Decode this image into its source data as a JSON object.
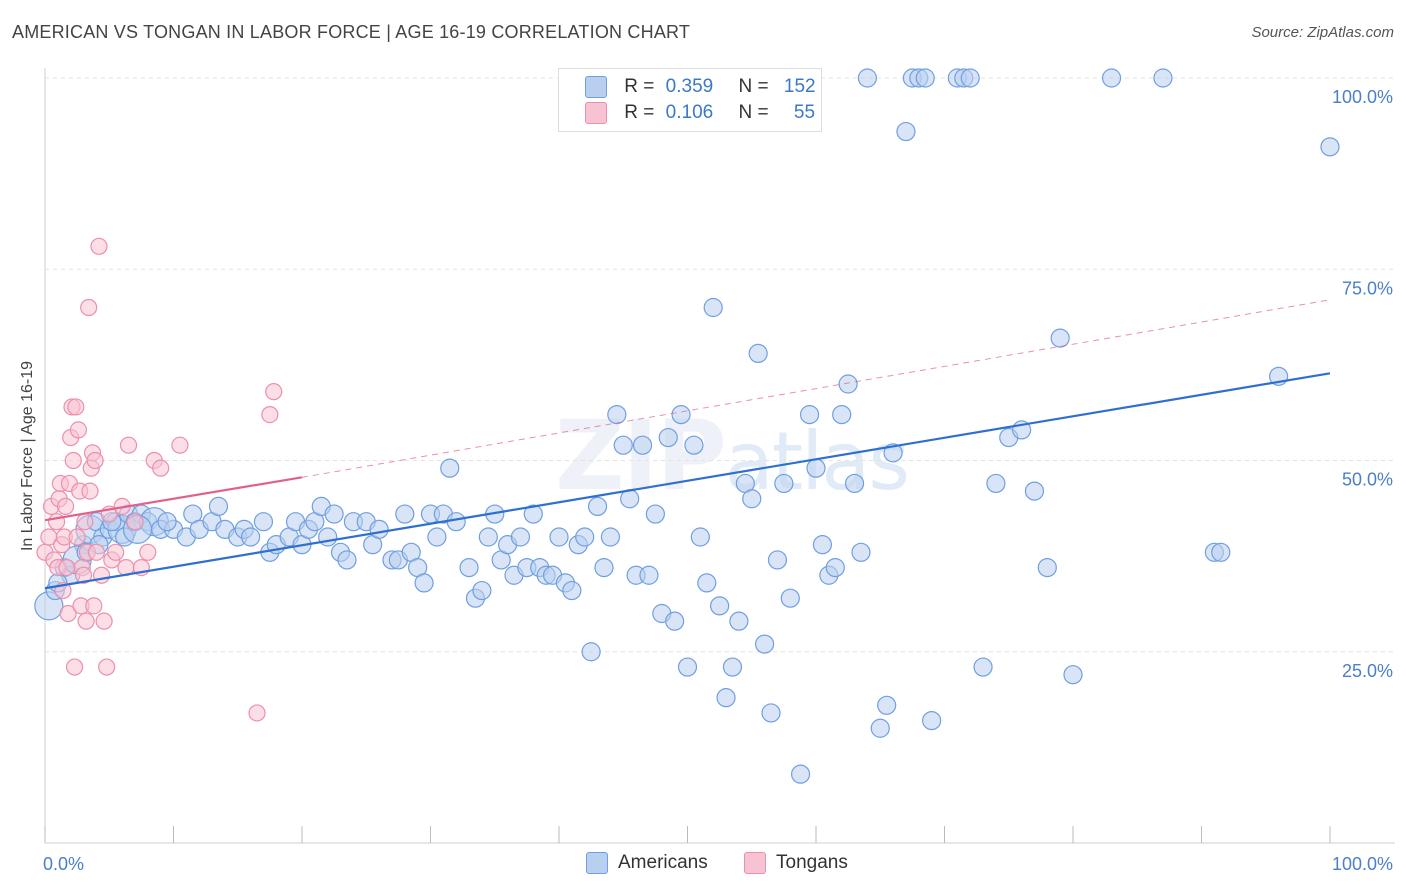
{
  "title": "AMERICAN VS TONGAN IN LABOR FORCE | AGE 16-19 CORRELATION CHART",
  "source": "Source: ZipAtlas.com",
  "watermark": {
    "zip": "ZIP",
    "atlas": "atlas"
  },
  "colors": {
    "americans_fill": "#b9cff0",
    "americans_stroke": "#6f9fe0",
    "americans_line": "#2f6fd0",
    "tongans_fill": "#f7c3d2",
    "tongans_stroke": "#ec8fac",
    "tongans_line": "#e0628a",
    "grid": "#e3e3e3",
    "tick_text": "#4a7fc9"
  },
  "legend": {
    "americans": {
      "r_label": "R =",
      "r_value": "0.359",
      "n_label": "N =",
      "n_value": "152"
    },
    "tongans": {
      "r_label": "R =",
      "r_value": "0.106",
      "n_label": "N =",
      "n_value": "55"
    }
  },
  "bottom_legend": {
    "americans": "Americans",
    "tongans": "Tongans"
  },
  "chart_data": {
    "type": "scatter",
    "title": "AMERICAN VS TONGAN IN LABOR FORCE | AGE 16-19 CORRELATION CHART",
    "xlabel": "",
    "ylabel": "In Labor Force | Age 16-19",
    "xlim": [
      0,
      100
    ],
    "ylim": [
      0,
      100
    ],
    "x_tick_labels": [
      "0.0%",
      "100.0%"
    ],
    "y_ticks": [
      25,
      50,
      75,
      100
    ],
    "y_tick_labels": [
      "25.0%",
      "50.0%",
      "75.0%",
      "100.0%"
    ],
    "grid": true,
    "legend_position": "top-center",
    "series": [
      {
        "name": "Americans",
        "r": 0.359,
        "n": 152,
        "trend": {
          "x": [
            0,
            100
          ],
          "y": [
            33.3,
            61.4
          ]
        },
        "points": [
          [
            0.3,
            31
          ],
          [
            0.8,
            33
          ],
          [
            1.5,
            36
          ],
          [
            2,
            35
          ],
          [
            3,
            39
          ],
          [
            3.5,
            41
          ],
          [
            4,
            42
          ],
          [
            4.5,
            40
          ],
          [
            5,
            41
          ],
          [
            5.5,
            42
          ],
          [
            6,
            41
          ],
          [
            6.5,
            43
          ],
          [
            7,
            42
          ],
          [
            7.5,
            43
          ],
          [
            8,
            42
          ],
          [
            8.5,
            42
          ],
          [
            9,
            41
          ],
          [
            10,
            41
          ],
          [
            11,
            40
          ],
          [
            11.5,
            43
          ],
          [
            12,
            41
          ],
          [
            13,
            42
          ],
          [
            13.5,
            44
          ],
          [
            14,
            41
          ],
          [
            15,
            40
          ],
          [
            15.5,
            41
          ],
          [
            16,
            40
          ],
          [
            17,
            42
          ],
          [
            17.5,
            38
          ],
          [
            18,
            39
          ],
          [
            19,
            40
          ],
          [
            19.5,
            42
          ],
          [
            20,
            39
          ],
          [
            20.5,
            41
          ],
          [
            21,
            42
          ],
          [
            21.5,
            44
          ],
          [
            22,
            40
          ],
          [
            22.5,
            43
          ],
          [
            23,
            38
          ],
          [
            23.5,
            37
          ],
          [
            24,
            42
          ],
          [
            25,
            42
          ],
          [
            25.5,
            39
          ],
          [
            26,
            41
          ],
          [
            27,
            37
          ],
          [
            27.5,
            37
          ],
          [
            28,
            43
          ],
          [
            28.5,
            38
          ],
          [
            29,
            36
          ],
          [
            29.5,
            34
          ],
          [
            30,
            43
          ],
          [
            30.5,
            40
          ],
          [
            31,
            43
          ],
          [
            31.5,
            49
          ],
          [
            32,
            42
          ],
          [
            33,
            36
          ],
          [
            33.5,
            32
          ],
          [
            34,
            33
          ],
          [
            34.5,
            40
          ],
          [
            35,
            43
          ],
          [
            35.5,
            37
          ],
          [
            36,
            39
          ],
          [
            36.5,
            35
          ],
          [
            37,
            40
          ],
          [
            37.5,
            36
          ],
          [
            38,
            43
          ],
          [
            38.5,
            36
          ],
          [
            39,
            35
          ],
          [
            39.5,
            35
          ],
          [
            40,
            40
          ],
          [
            40.5,
            34
          ],
          [
            41,
            33
          ],
          [
            41.5,
            39
          ],
          [
            42,
            40
          ],
          [
            42.5,
            25
          ],
          [
            43,
            44
          ],
          [
            43.5,
            36
          ],
          [
            44,
            40
          ],
          [
            44.5,
            56
          ],
          [
            45,
            52
          ],
          [
            45.5,
            45
          ],
          [
            46,
            35
          ],
          [
            46.5,
            52
          ],
          [
            47,
            35
          ],
          [
            47.5,
            43
          ],
          [
            48,
            30
          ],
          [
            48.5,
            53
          ],
          [
            49,
            29
          ],
          [
            49.5,
            56
          ],
          [
            50,
            23
          ],
          [
            50.5,
            52
          ],
          [
            51,
            40
          ],
          [
            51.5,
            34
          ],
          [
            52,
            70
          ],
          [
            52.5,
            31
          ],
          [
            53,
            19
          ],
          [
            53.5,
            23
          ],
          [
            54,
            29
          ],
          [
            54.5,
            47
          ],
          [
            55,
            45
          ],
          [
            55.5,
            64
          ],
          [
            56,
            26
          ],
          [
            56.5,
            17
          ],
          [
            57,
            37
          ],
          [
            57.5,
            47
          ],
          [
            58,
            32
          ],
          [
            58.5,
            100
          ],
          [
            58.8,
            9
          ],
          [
            59,
            100
          ],
          [
            59.5,
            56
          ],
          [
            60,
            49
          ],
          [
            60.5,
            39
          ],
          [
            61,
            35
          ],
          [
            61.5,
            36
          ],
          [
            62,
            56
          ],
          [
            62.5,
            60
          ],
          [
            63,
            47
          ],
          [
            63.5,
            38
          ],
          [
            64,
            100
          ],
          [
            65,
            15
          ],
          [
            65.5,
            18
          ],
          [
            66,
            51
          ],
          [
            67,
            93
          ],
          [
            67.5,
            100
          ],
          [
            68,
            100
          ],
          [
            68.5,
            100
          ],
          [
            69,
            16
          ],
          [
            71,
            100
          ],
          [
            71.5,
            100
          ],
          [
            72,
            100
          ],
          [
            73,
            23
          ],
          [
            74,
            47
          ],
          [
            75,
            53
          ],
          [
            76,
            54
          ],
          [
            77,
            46
          ],
          [
            78,
            36
          ],
          [
            79,
            66
          ],
          [
            80,
            22
          ],
          [
            83,
            100
          ],
          [
            87,
            100
          ],
          [
            91,
            38
          ],
          [
            91.5,
            38
          ],
          [
            96,
            61
          ],
          [
            100,
            91
          ],
          [
            1,
            34
          ],
          [
            2.5,
            37
          ],
          [
            3.2,
            38
          ],
          [
            4.2,
            39
          ],
          [
            5.2,
            42
          ],
          [
            6.2,
            40
          ],
          [
            7.2,
            41
          ],
          [
            9.5,
            42
          ]
        ]
      },
      {
        "name": "Tongans",
        "r": 0.106,
        "n": 55,
        "trend": {
          "x": [
            0,
            20
          ],
          "y": [
            42.2,
            47.8
          ]
        },
        "trend_extended": {
          "x": [
            20,
            100
          ],
          "y": [
            47.8,
            71
          ]
        },
        "points": [
          [
            0,
            38
          ],
          [
            0.3,
            40
          ],
          [
            0.5,
            44
          ],
          [
            0.7,
            37
          ],
          [
            0.9,
            42
          ],
          [
            1,
            36
          ],
          [
            1.1,
            45
          ],
          [
            1.2,
            47
          ],
          [
            1.3,
            39
          ],
          [
            1.4,
            33
          ],
          [
            1.5,
            40
          ],
          [
            1.6,
            44
          ],
          [
            1.7,
            36
          ],
          [
            1.8,
            30
          ],
          [
            1.9,
            47
          ],
          [
            2,
            53
          ],
          [
            2.1,
            57
          ],
          [
            2.2,
            50
          ],
          [
            2.3,
            23
          ],
          [
            2.4,
            57
          ],
          [
            2.5,
            40
          ],
          [
            2.6,
            54
          ],
          [
            2.7,
            46
          ],
          [
            2.8,
            31
          ],
          [
            2.9,
            36
          ],
          [
            3,
            35
          ],
          [
            3.1,
            42
          ],
          [
            3.2,
            29
          ],
          [
            3.3,
            38
          ],
          [
            3.4,
            70
          ],
          [
            3.5,
            46
          ],
          [
            3.6,
            49
          ],
          [
            3.7,
            51
          ],
          [
            3.8,
            31
          ],
          [
            3.9,
            50
          ],
          [
            4,
            38
          ],
          [
            4.2,
            78
          ],
          [
            4.4,
            35
          ],
          [
            4.6,
            29
          ],
          [
            4.8,
            23
          ],
          [
            5,
            43
          ],
          [
            5.2,
            37
          ],
          [
            5.5,
            38
          ],
          [
            6,
            44
          ],
          [
            6.3,
            36
          ],
          [
            6.5,
            52
          ],
          [
            7,
            42
          ],
          [
            7.5,
            36
          ],
          [
            8,
            38
          ],
          [
            8.5,
            50
          ],
          [
            9,
            49
          ],
          [
            10.5,
            52
          ],
          [
            16.5,
            17
          ],
          [
            17.5,
            56
          ],
          [
            17.8,
            59
          ]
        ]
      }
    ]
  }
}
